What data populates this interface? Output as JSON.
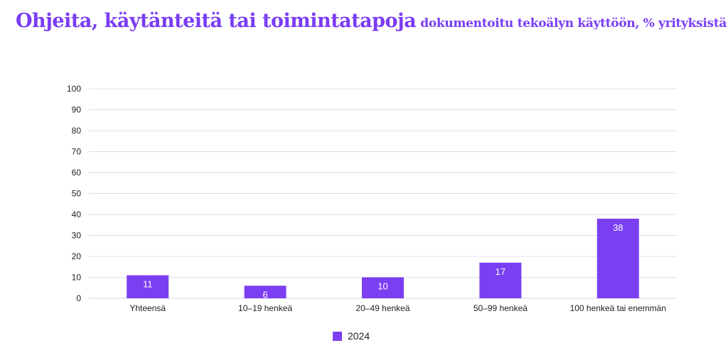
{
  "title": {
    "main": "Ohjeita, käytänteitä tai toimintatapoja",
    "sub": "dokumentoitu tekoälyn käyttöön, % yrityksistä"
  },
  "colors": {
    "accent": "#7a3cf5",
    "bar": "#7b3ff2",
    "grid": "#dcdcf0"
  },
  "chart_data": {
    "type": "bar",
    "categories": [
      "Yhteensä",
      "10–19 henkeä",
      "20–49 henkeä",
      "50–99 henkeä",
      "100 henkeä tai enemmän"
    ],
    "series": [
      {
        "name": "2024",
        "values": [
          11,
          6,
          10,
          17,
          38
        ]
      }
    ],
    "ylim": [
      0,
      100
    ],
    "yticks": [
      0,
      10,
      20,
      30,
      40,
      50,
      60,
      70,
      80,
      90,
      100
    ],
    "grid": true,
    "legend_position": "bottom"
  },
  "legend": {
    "label": "2024"
  }
}
